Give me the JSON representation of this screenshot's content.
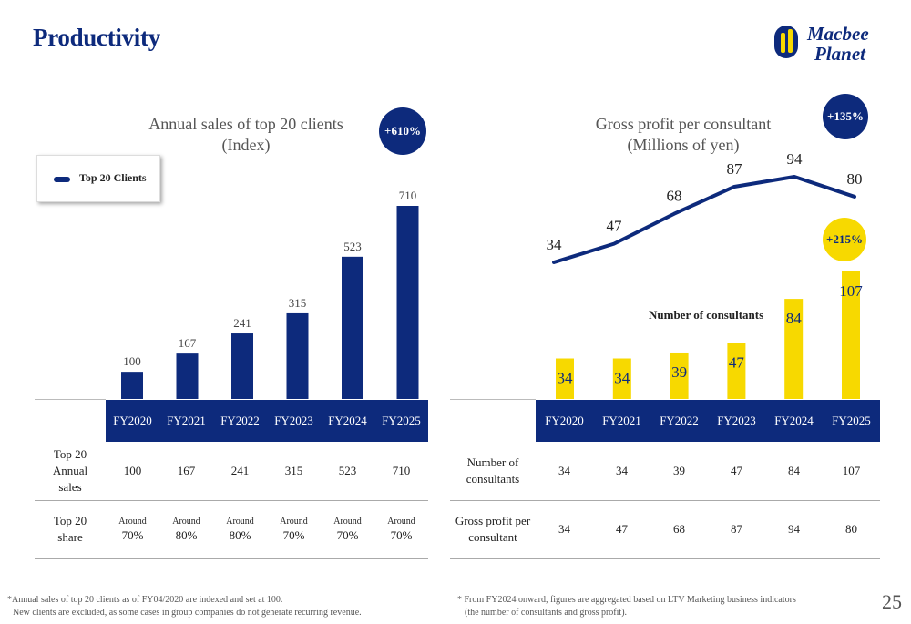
{
  "page": {
    "title": "Productivity",
    "page_number": "25"
  },
  "logo": {
    "line1": "Macbee",
    "line2": "Planet"
  },
  "colors": {
    "navy": "#0d2a7c",
    "yellow": "#f7d900"
  },
  "left_chart": {
    "title_line1": "Annual sales of top 20 clients",
    "title_line2": "(Index)",
    "badge": "+610%",
    "legend_label": "Top 20 Clients"
  },
  "right_chart": {
    "title_line1": "Gross profit per consultant",
    "title_line2": "(Millions of yen)",
    "badge_profit": "+135%",
    "badge_consultants": "+215%",
    "consultants_label": "Number of consultants"
  },
  "chart_data": [
    {
      "type": "bar",
      "title": "Annual sales of top 20 clients (Index)",
      "categories": [
        "FY2020",
        "FY2021",
        "FY2022",
        "FY2023",
        "FY2024",
        "FY2025"
      ],
      "series": [
        {
          "name": "Top 20 Clients",
          "values": [
            100,
            167,
            241,
            315,
            523,
            710
          ]
        }
      ],
      "ylim": [
        0,
        710
      ],
      "legend": "top-left"
    },
    {
      "type": "line",
      "title": "Gross profit per consultant (Millions of yen)",
      "categories": [
        "FY2020",
        "FY2021",
        "FY2022",
        "FY2023",
        "FY2024",
        "FY2025"
      ],
      "series": [
        {
          "values": [
            34,
            47,
            68,
            87,
            94,
            80
          ]
        }
      ]
    },
    {
      "type": "bar",
      "title": "Number of consultants",
      "categories": [
        "FY2020",
        "FY2021",
        "FY2022",
        "FY2023",
        "FY2024",
        "FY2025"
      ],
      "series": [
        {
          "values": [
            34,
            34,
            39,
            47,
            84,
            107
          ]
        }
      ],
      "ylim": [
        0,
        107
      ]
    }
  ],
  "left_table": {
    "headers": [
      "FY2020",
      "FY2021",
      "FY2022",
      "FY2023",
      "FY2024",
      "FY2025"
    ],
    "row1_label": [
      "Top 20",
      "Annual",
      "sales"
    ],
    "row1_values": [
      "100",
      "167",
      "241",
      "315",
      "523",
      "710"
    ],
    "row2_label": [
      "Top 20",
      "share"
    ],
    "row2_prefix": "Around",
    "row2_values": [
      "70%",
      "80%",
      "80%",
      "70%",
      "70%",
      "70%"
    ]
  },
  "right_table": {
    "headers": [
      "FY2020",
      "FY2021",
      "FY2022",
      "FY2023",
      "FY2024",
      "FY2025"
    ],
    "row1_label": [
      "Number of",
      "consultants"
    ],
    "row1_values": [
      "34",
      "34",
      "39",
      "47",
      "84",
      "107"
    ],
    "row2_label": [
      "Gross profit per",
      "consultant"
    ],
    "row2_values": [
      "34",
      "47",
      "68",
      "87",
      "94",
      "80"
    ]
  },
  "footnotes": {
    "left_line1": "*Annual sales of top 20 clients as of FY04/2020 are indexed and set at 100.",
    "left_line2": "New clients are excluded, as some cases in group companies do not generate recurring revenue.",
    "right_line1": "* From FY2024 onward, figures are aggregated based on LTV Marketing business indicators",
    "right_line2": "(the number of consultants and gross profit)."
  }
}
